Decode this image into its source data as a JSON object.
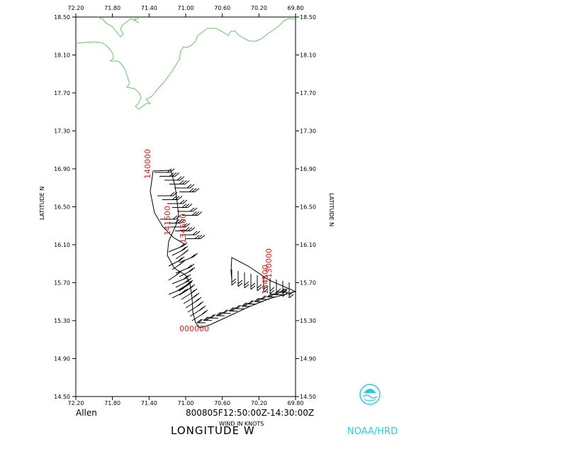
{
  "axes": {
    "lon_ticks": [
      "72.20",
      "71.80",
      "71.40",
      "71.00",
      "70.60",
      "70.20",
      "69.80"
    ],
    "lat_ticks": [
      "18.50",
      "18.10",
      "17.70",
      "17.30",
      "16.90",
      "16.50",
      "16.10",
      "15.70",
      "15.30",
      "14.90",
      "14.50"
    ],
    "xlabel": "LONGITUDE   W",
    "ylabel_left": "LATITUDE   N",
    "ylabel_right": "LATITUDE   N"
  },
  "storm_name": "Allen",
  "time_range": "800805F12:50:00Z-14:30:00Z",
  "wind_units": "WIND IN KNOTS",
  "agency": "NOAA/HRD",
  "track_labels": [
    "140000",
    "141500",
    "134500",
    "130000",
    "134500",
    "000000"
  ],
  "colors": {
    "coast": "#6fbf6f",
    "labels": "#c0281e",
    "noaa": "#2fc9d6"
  }
}
